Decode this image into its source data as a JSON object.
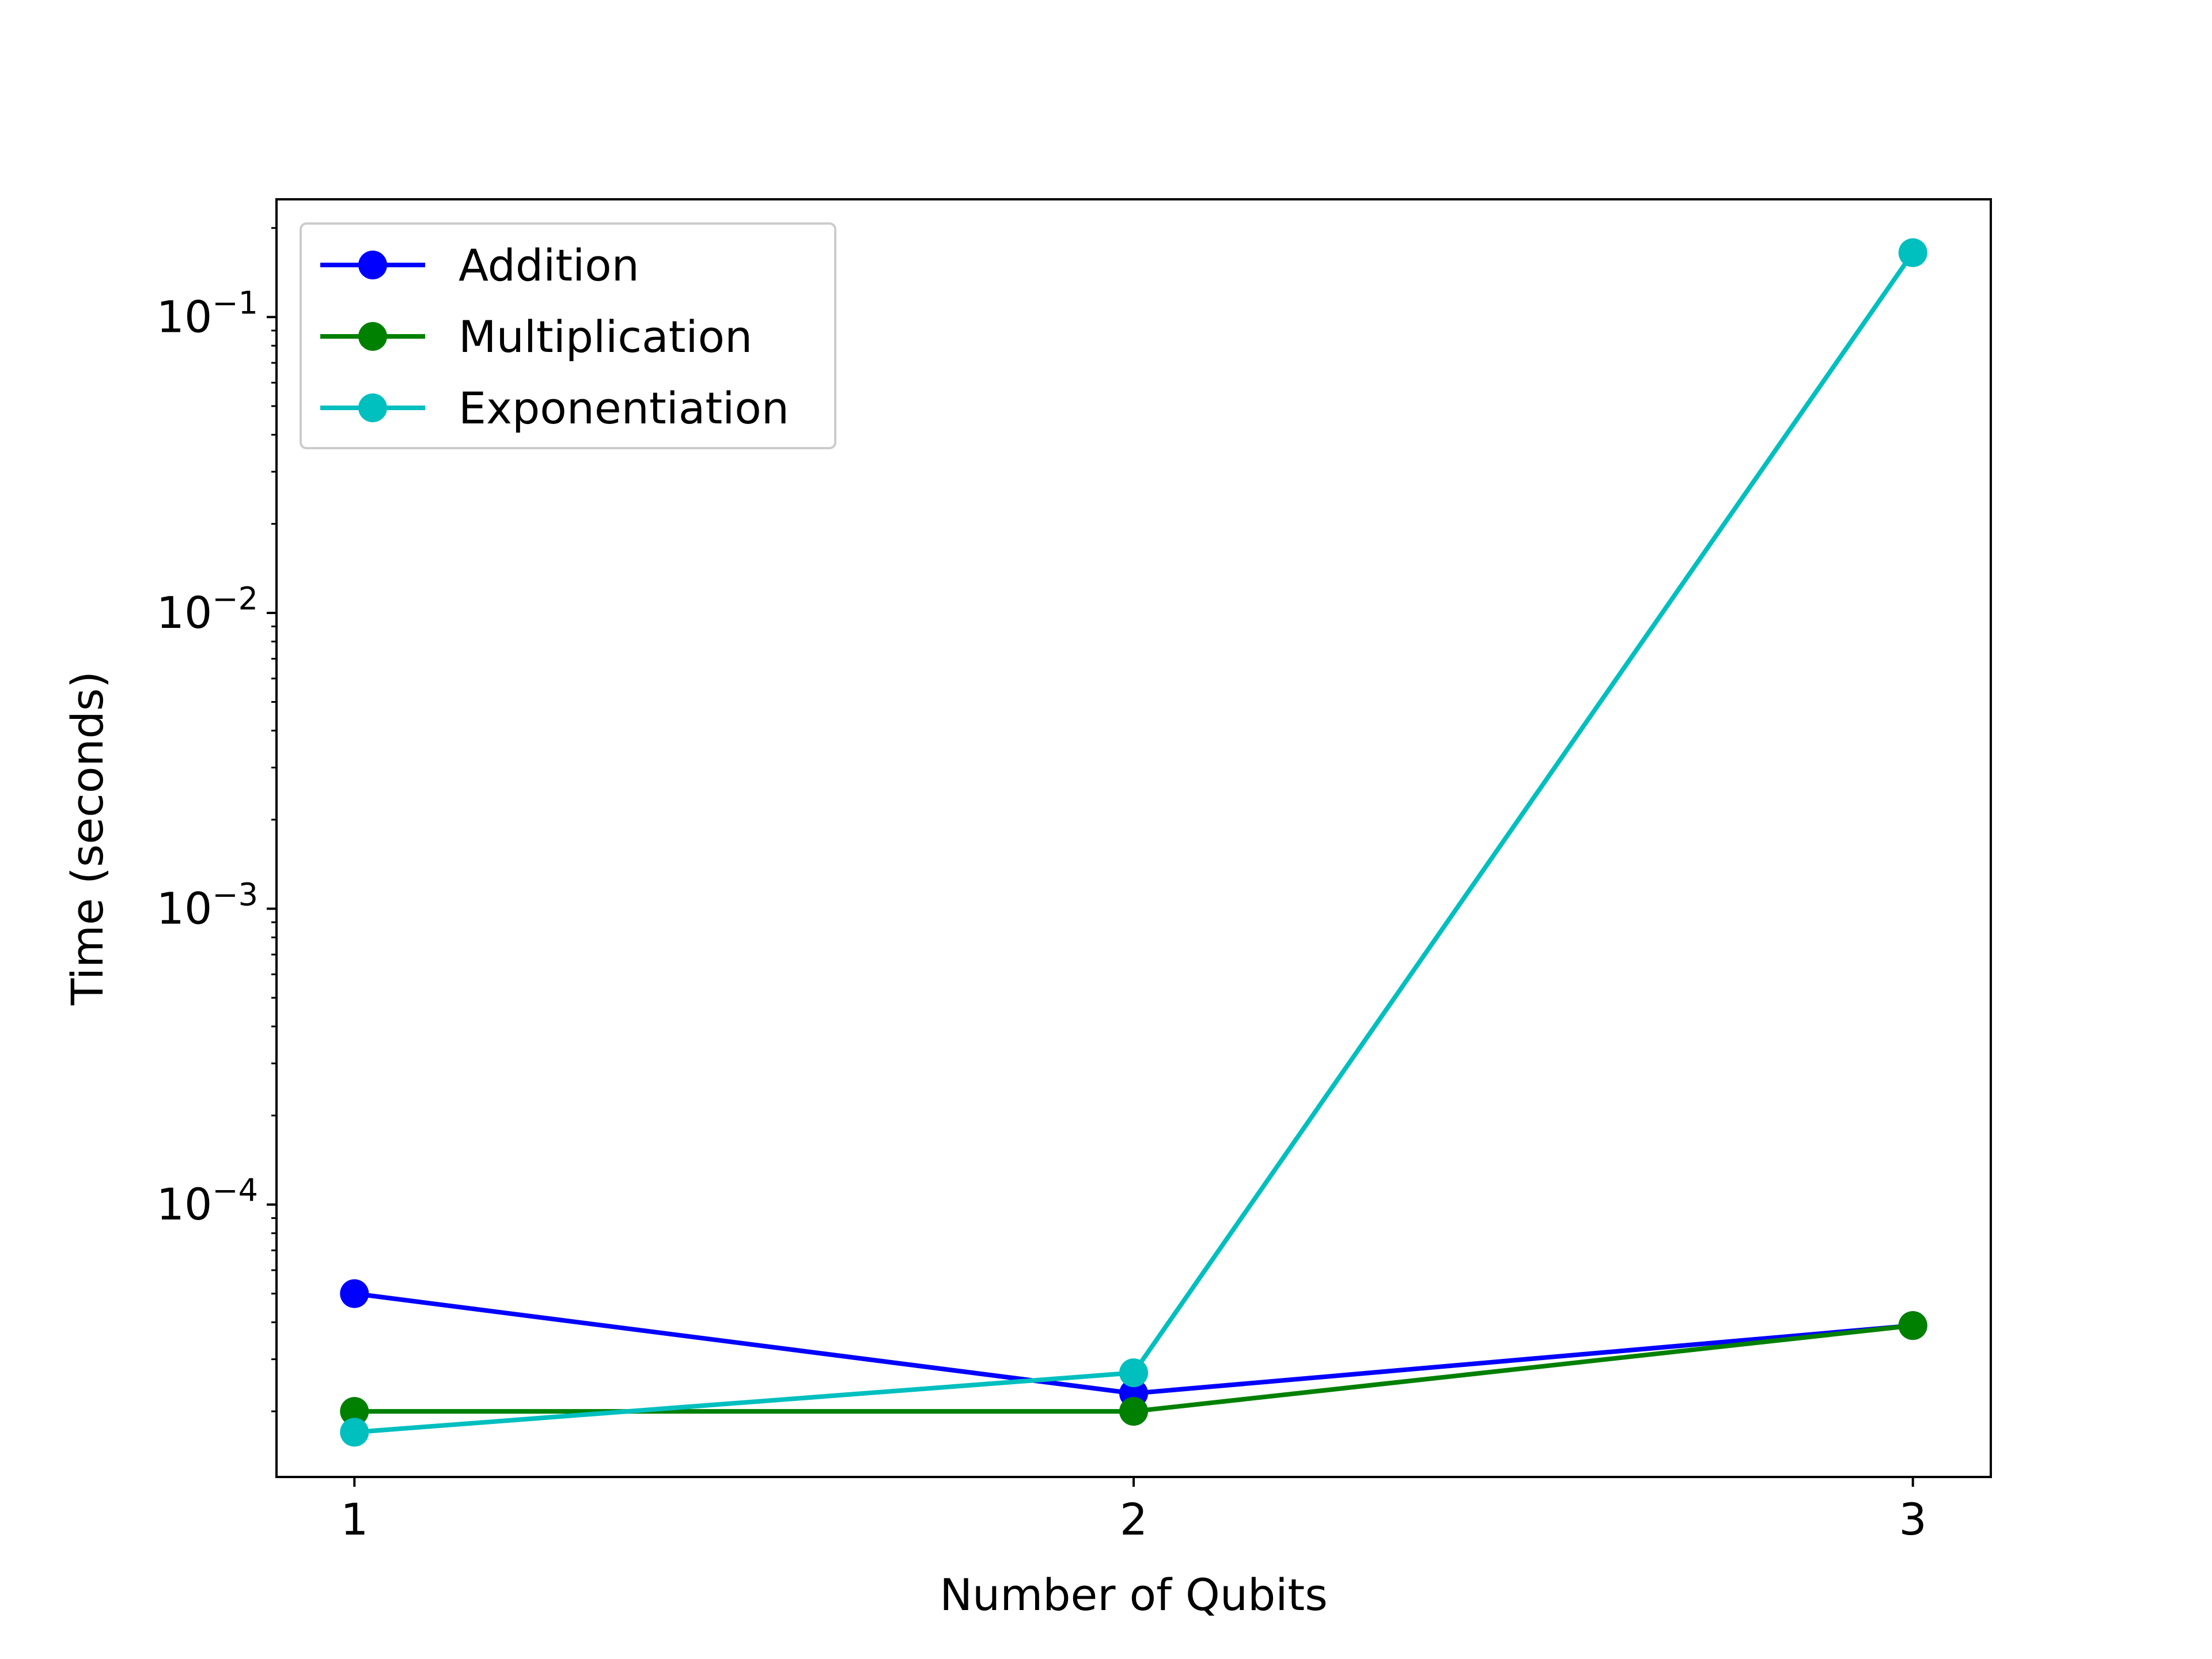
{
  "chart_data": {
    "type": "line",
    "title": "",
    "xlabel": "Number of Qubits",
    "ylabel": "Time (seconds)",
    "x": [
      1,
      2,
      3
    ],
    "xticks": [
      "1",
      "2",
      "3"
    ],
    "xlim": [
      0.9,
      3.1
    ],
    "yscale": "log",
    "ylim": [
      1.2e-05,
      0.25
    ],
    "yticks": [
      {
        "value": 0.0001,
        "base": "10",
        "exp": "−4"
      },
      {
        "value": 0.001,
        "base": "10",
        "exp": "−3"
      },
      {
        "value": 0.01,
        "base": "10",
        "exp": "−2"
      },
      {
        "value": 0.1,
        "base": "10",
        "exp": "−1"
      }
    ],
    "grid": false,
    "legend_position": "top-left",
    "series": [
      {
        "name": "Addition",
        "color": "#0000ff",
        "marker": "circle",
        "values": [
          5e-05,
          2.3e-05,
          3.9e-05
        ]
      },
      {
        "name": "Multiplication",
        "color": "#008000",
        "marker": "circle",
        "values": [
          2e-05,
          2e-05,
          3.9e-05
        ]
      },
      {
        "name": "Exponentiation",
        "color": "#00bfbf",
        "marker": "circle",
        "values": [
          1.7e-05,
          2.7e-05,
          0.165
        ]
      }
    ]
  }
}
